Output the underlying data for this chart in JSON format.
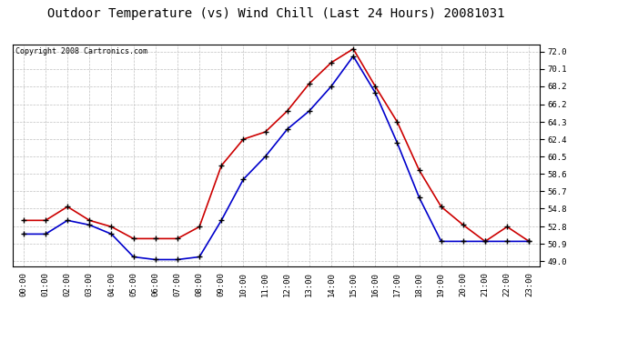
{
  "title": "Outdoor Temperature (vs) Wind Chill (Last 24 Hours) 20081031",
  "copyright": "Copyright 2008 Cartronics.com",
  "x_labels": [
    "00:00",
    "01:00",
    "02:00",
    "03:00",
    "04:00",
    "05:00",
    "06:00",
    "07:00",
    "08:00",
    "09:00",
    "10:00",
    "11:00",
    "12:00",
    "13:00",
    "14:00",
    "15:00",
    "16:00",
    "17:00",
    "18:00",
    "19:00",
    "20:00",
    "21:00",
    "22:00",
    "23:00"
  ],
  "red_temp": [
    53.5,
    53.5,
    55.0,
    53.5,
    52.8,
    51.5,
    51.5,
    51.5,
    52.8,
    59.5,
    62.4,
    63.2,
    65.5,
    68.5,
    70.8,
    72.3,
    68.2,
    64.3,
    59.0,
    55.0,
    53.0,
    51.2,
    52.8,
    51.2
  ],
  "blue_windchill": [
    52.0,
    52.0,
    53.5,
    53.0,
    52.0,
    49.5,
    49.2,
    49.2,
    49.5,
    53.5,
    58.0,
    60.5,
    63.5,
    65.5,
    68.2,
    71.5,
    67.5,
    62.0,
    56.0,
    51.2,
    51.2,
    51.2,
    51.2,
    51.2
  ],
  "y_ticks": [
    49.0,
    50.9,
    52.8,
    54.8,
    56.7,
    58.6,
    60.5,
    62.4,
    64.3,
    66.2,
    68.2,
    70.1,
    72.0
  ],
  "ylim": [
    48.5,
    72.8
  ],
  "red_color": "#cc0000",
  "blue_color": "#0000cc",
  "grid_color": "#c0c0c0",
  "bg_color": "#ffffff",
  "plot_bg_color": "#ffffff",
  "title_fontsize": 10,
  "copyright_fontsize": 6,
  "tick_fontsize": 6.5,
  "marker": "+"
}
